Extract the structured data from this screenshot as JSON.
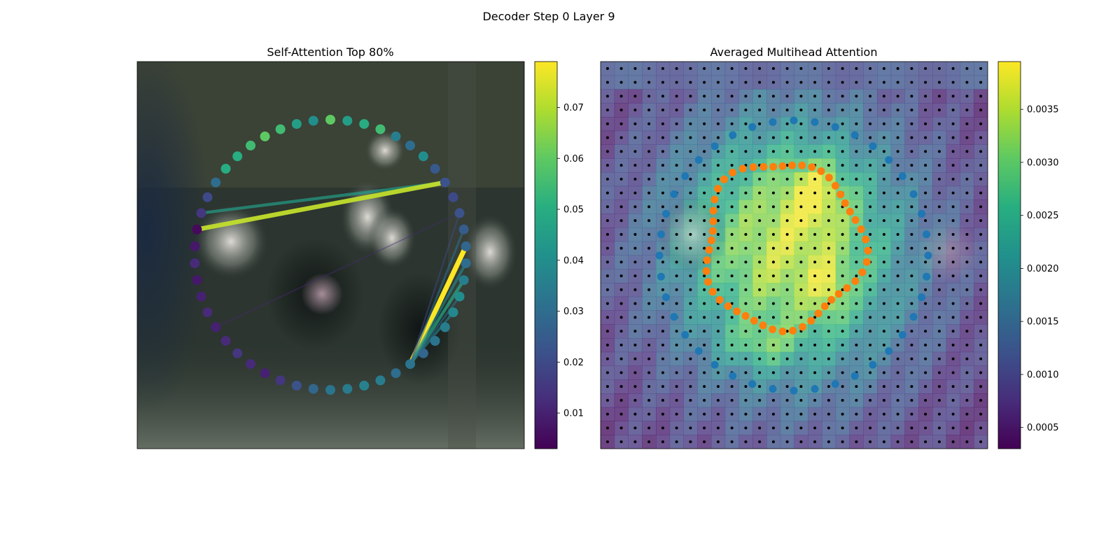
{
  "figure_title": "Decoder Step 0 Layer 9",
  "chart_data": [
    {
      "type": "network",
      "title": "Self-Attention Top 80%",
      "colorbar": {
        "ticks": [
          "0.01",
          "0.02",
          "0.03",
          "0.04",
          "0.05",
          "0.06",
          "0.07"
        ],
        "tick_values": [
          0.01,
          0.02,
          0.03,
          0.04,
          0.05,
          0.06,
          0.07
        ],
        "range": [
          0.003,
          0.079
        ],
        "colormap": "viridis"
      },
      "node_count": 50,
      "node_weights": [
        0.06,
        0.045,
        0.05,
        0.055,
        0.035,
        0.03,
        0.04,
        0.024,
        0.022,
        0.02,
        0.022,
        0.025,
        0.028,
        0.03,
        0.035,
        0.04,
        0.038,
        0.035,
        0.032,
        0.028,
        0.032,
        0.03,
        0.035,
        0.036,
        0.034,
        0.032,
        0.028,
        0.022,
        0.015,
        0.01,
        0.012,
        0.015,
        0.012,
        0.01,
        0.012,
        0.01,
        0.008,
        0.012,
        0.008,
        0.005,
        0.015,
        0.02,
        0.03,
        0.05,
        0.05,
        0.055,
        0.06,
        0.055,
        0.045,
        0.04
      ],
      "edges": [
        {
          "from": 8,
          "to": 40,
          "weight": 0.045
        },
        {
          "from": 8,
          "to": 39,
          "weight": 0.072
        },
        {
          "from": 12,
          "to": 20,
          "weight": 0.079
        },
        {
          "from": 11,
          "to": 20,
          "weight": 0.03
        },
        {
          "from": 14,
          "to": 20,
          "weight": 0.048
        },
        {
          "from": 13,
          "to": 20,
          "weight": 0.038
        },
        {
          "from": 16,
          "to": 20,
          "weight": 0.036
        },
        {
          "from": 15,
          "to": 20,
          "weight": 0.03
        },
        {
          "from": 10,
          "to": 20,
          "weight": 0.02
        },
        {
          "from": 10,
          "to": 33,
          "weight": 0.012
        }
      ]
    },
    {
      "type": "heatmap",
      "title": "Averaged Multihead Attention",
      "colorbar": {
        "ticks": [
          "0.0005",
          "0.0010",
          "0.0015",
          "0.0020",
          "0.0025",
          "0.0030",
          "0.0035"
        ],
        "tick_values": [
          0.0005,
          0.001,
          0.0015,
          0.002,
          0.0025,
          0.003,
          0.0035
        ],
        "range": [
          0.0003,
          0.00395
        ],
        "colormap": "viridis"
      },
      "grid_size": 28,
      "reference_points_color": "#1f77b4",
      "sampled_points_color": "#ff7f0e",
      "grid_dot_color": "#000000"
    }
  ]
}
